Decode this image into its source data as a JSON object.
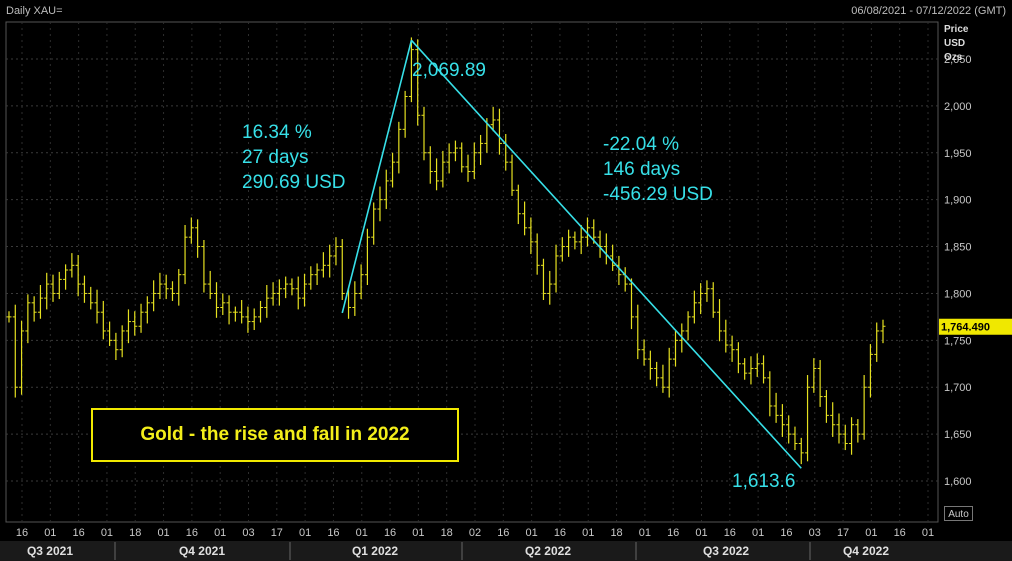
{
  "header": {
    "symbol": "Daily XAU=",
    "date_range": "06/08/2021 - 07/12/2022 (GMT)"
  },
  "axis_units": [
    "Price",
    "USD",
    "Ozs"
  ],
  "auto_button": "Auto",
  "title_box": "Gold - the rise and fall in 2022",
  "colors": {
    "bars": "#e5e020",
    "annotation": "#37e0e8",
    "background": "#000000",
    "box_border": "#f0e800"
  },
  "chart_data": {
    "type": "bar",
    "subtype": "ohlc",
    "ylim": [
      1575,
      2105
    ],
    "ytick_values": [
      1600,
      1650,
      1700,
      1750,
      1800,
      1850,
      1900,
      1950,
      2000,
      2050
    ],
    "ytick_labels": [
      "1,600",
      "1,650",
      "1,700",
      "1,750",
      "1,800",
      "1,850",
      "1,900",
      "1,950",
      "2,000",
      "2,050"
    ],
    "last_price": 1764.49,
    "last_price_label": "1,764.490",
    "x_day_ticks": [
      "16",
      "01",
      "16",
      "01",
      "18",
      "01",
      "16",
      "01",
      "03",
      "17",
      "01",
      "16",
      "01",
      "16",
      "01",
      "18",
      "02",
      "16",
      "01",
      "16",
      "01",
      "18",
      "01",
      "16",
      "01",
      "16",
      "01",
      "16",
      "03",
      "17",
      "01",
      "16",
      "01"
    ],
    "x_periods": [
      "Q3 2021",
      "Q4 2021",
      "Q1 2022",
      "Q2 2022",
      "Q3 2022",
      "Q4 2022"
    ],
    "ohlc_approx": [
      1775,
      1700,
      1760,
      1790,
      1780,
      1795,
      1810,
      1800,
      1815,
      1825,
      1830,
      1810,
      1800,
      1790,
      1780,
      1760,
      1750,
      1740,
      1760,
      1770,
      1765,
      1780,
      1790,
      1800,
      1810,
      1805,
      1800,
      1820,
      1860,
      1870,
      1850,
      1810,
      1800,
      1785,
      1790,
      1780,
      1780,
      1775,
      1770,
      1775,
      1785,
      1795,
      1800,
      1805,
      1810,
      1805,
      1795,
      1810,
      1820,
      1825,
      1830,
      1840,
      1850,
      1800,
      1785,
      1800,
      1820,
      1860,
      1890,
      1900,
      1920,
      1940,
      1975,
      2010,
      2060,
      1990,
      1950,
      1930,
      1920,
      1940,
      1950,
      1955,
      1935,
      1930,
      1950,
      1960,
      1980,
      1985,
      1960,
      1940,
      1910,
      1885,
      1870,
      1855,
      1830,
      1800,
      1810,
      1840,
      1850,
      1860,
      1855,
      1860,
      1870,
      1860,
      1850,
      1840,
      1830,
      1820,
      1810,
      1775,
      1740,
      1730,
      1720,
      1710,
      1700,
      1730,
      1750,
      1760,
      1775,
      1790,
      1800,
      1805,
      1780,
      1760,
      1745,
      1740,
      1725,
      1715,
      1720,
      1725,
      1710,
      1680,
      1670,
      1660,
      1650,
      1640,
      1630,
      1700,
      1720,
      1690,
      1670,
      1660,
      1650,
      1640,
      1660,
      1650,
      1700,
      1735,
      1760,
      1765
    ],
    "annotations": [
      {
        "label": "2,069.89",
        "kind": "peak",
        "x_index": 64,
        "value": 2069.89
      },
      {
        "label": "1,613.6",
        "kind": "trough",
        "x_index": 126,
        "value": 1613.6
      },
      {
        "lines": [
          "16.34 %",
          "27 days",
          "290.69 USD"
        ],
        "kind": "rise"
      },
      {
        "lines": [
          "-22.04 %",
          "146 days",
          "-456.29 USD"
        ],
        "kind": "fall"
      }
    ],
    "trend_lines": [
      {
        "from": {
          "x_index": 53,
          "value": 1779.2
        },
        "to": {
          "x_index": 64,
          "value": 2069.89
        }
      },
      {
        "from": {
          "x_index": 64,
          "value": 2069.89
        },
        "to": {
          "x_index": 126,
          "value": 1613.6
        }
      }
    ]
  }
}
